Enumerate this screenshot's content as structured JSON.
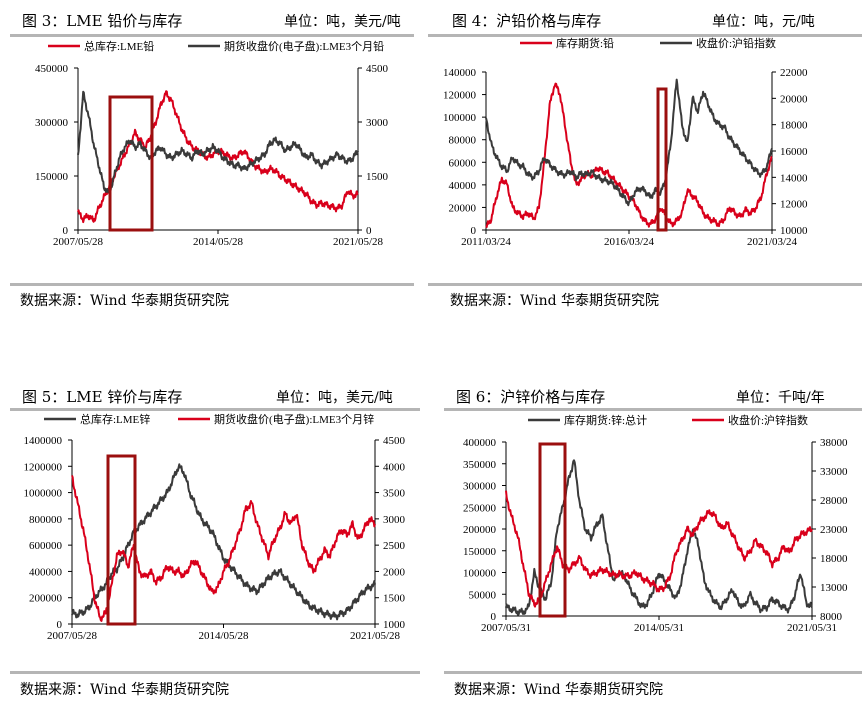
{
  "colors": {
    "red": "#d9001b",
    "dark": "#3a3a3a",
    "box": "#9b0f0f",
    "rule": "#b5b5b5"
  },
  "panels": [
    {
      "title": "图 3：LME 铅价与库存",
      "unit": "单位：吨，美元/吨",
      "source": "数据来源：Wind 华泰期货研究院",
      "chart_data": {
        "type": "line",
        "x_ticks": [
          "2007/05/28",
          "2014/05/28",
          "2021/05/28"
        ],
        "y_left": {
          "min": 0,
          "max": 450000,
          "ticks": [
            "0",
            "150000",
            "300000",
            "450000"
          ]
        },
        "y_right": {
          "min": 0,
          "max": 4500,
          "ticks": [
            "0",
            "1500",
            "3000",
            "4500"
          ]
        },
        "series": [
          {
            "name": "总库存:LME铅",
            "axis": "left",
            "color": "#d9001b",
            "values": [
              50000,
              30000,
              40000,
              25000,
              60000,
              90000,
              120000,
              150000,
              180000,
              210000,
              240000,
              270000,
              250000,
              230000,
              260000,
              300000,
              350000,
              380000,
              360000,
              320000,
              280000,
              250000,
              230000,
              220000,
              210000,
              200000,
              210000,
              220000,
              215000,
              205000,
              200000,
              210000,
              220000,
              200000,
              180000,
              170000,
              160000,
              170000,
              165000,
              150000,
              140000,
              130000,
              120000,
              110000,
              100000,
              80000,
              70000,
              75000,
              70000,
              65000,
              60000,
              70000,
              110000,
              95000,
              100000
            ]
          },
          {
            "name": "期货收盘价(电子盘):LME3个月铅",
            "axis": "right",
            "color": "#3a3a3a",
            "values": [
              2000,
              3800,
              3200,
              2400,
              1800,
              1200,
              1000,
              1500,
              2000,
              2300,
              2500,
              2300,
              2400,
              2200,
              2000,
              2200,
              2300,
              2100,
              2000,
              2100,
              2200,
              2100,
              2000,
              2200,
              2100,
              2200,
              2300,
              2200,
              2000,
              1900,
              1800,
              1800,
              1700,
              1800,
              1900,
              2000,
              2100,
              2400,
              2500,
              2400,
              2200,
              2300,
              2400,
              2200,
              2000,
              2100,
              1900,
              1800,
              1900,
              2000,
              2100,
              2000,
              1900,
              2000,
              2200
            ]
          }
        ]
      }
    },
    {
      "title": "图 4：沪铅价格与库存",
      "unit": "单位：吨，元/吨",
      "source": "数据来源：Wind 华泰期货研究院",
      "chart_data": {
        "type": "line",
        "x_ticks": [
          "2011/03/24",
          "2016/03/24",
          "2021/03/24"
        ],
        "y_left": {
          "min": 0,
          "max": 140000,
          "ticks": [
            "0",
            "20000",
            "40000",
            "60000",
            "80000",
            "100000",
            "120000",
            "140000"
          ]
        },
        "y_right": {
          "min": 10000,
          "max": 22000,
          "ticks": [
            "10000",
            "12000",
            "14000",
            "16000",
            "18000",
            "20000",
            "22000"
          ]
        },
        "series": [
          {
            "name": "库存期货:铅",
            "axis": "left",
            "color": "#d9001b",
            "values": [
              2000,
              10000,
              30000,
              45000,
              40000,
              20000,
              15000,
              12000,
              15000,
              10000,
              20000,
              60000,
              110000,
              130000,
              120000,
              90000,
              60000,
              40000,
              45000,
              50000,
              48000,
              55000,
              52000,
              50000,
              45000,
              40000,
              35000,
              30000,
              25000,
              15000,
              8000,
              5000,
              10000,
              20000,
              12000,
              5000,
              8000,
              15000,
              35000,
              30000,
              25000,
              15000,
              10000,
              8000,
              5000,
              10000,
              20000,
              15000,
              12000,
              18000,
              15000,
              20000,
              30000,
              50000,
              65000
            ]
          },
          {
            "name": "收盘价:沪铅指数",
            "axis": "right",
            "color": "#3a3a3a",
            "values": [
              18500,
              16500,
              15500,
              14800,
              14500,
              15500,
              15000,
              14800,
              14200,
              14000,
              14500,
              15500,
              15000,
              14600,
              14300,
              14200,
              14500,
              14000,
              14300,
              14200,
              14400,
              14000,
              13800,
              13700,
              13500,
              13000,
              12500,
              12000,
              12800,
              13200,
              13000,
              12500,
              13000,
              12800,
              14000,
              17000,
              21500,
              18000,
              16500,
              20000,
              19000,
              20500,
              19500,
              18500,
              18000,
              17800,
              17000,
              16500,
              16000,
              15500,
              15000,
              14500,
              14200,
              14800,
              16200
            ]
          }
        ]
      }
    },
    {
      "title": "图 5：LME 锌价与库存",
      "unit": "单位：吨，美元/吨",
      "source": "数据来源：Wind 华泰期货研究院",
      "chart_data": {
        "type": "line",
        "x_ticks": [
          "2007/05/28",
          "2014/05/28",
          "2021/05/28"
        ],
        "y_left": {
          "min": 0,
          "max": 1400000,
          "ticks": [
            "0",
            "200000",
            "400000",
            "600000",
            "800000",
            "1000000",
            "1200000",
            "1400000"
          ]
        },
        "y_right": {
          "min": 1000,
          "max": 4500,
          "ticks": [
            "1000",
            "1500",
            "2000",
            "2500",
            "3000",
            "3500",
            "4000",
            "4500"
          ]
        },
        "series": [
          {
            "name": "总库存:LME锌",
            "axis": "left",
            "color": "#3a3a3a",
            "values": [
              80000,
              70000,
              90000,
              120000,
              200000,
              250000,
              300000,
              380000,
              420000,
              500000,
              600000,
              700000,
              750000,
              800000,
              850000,
              900000,
              950000,
              1000000,
              1100000,
              1200000,
              1150000,
              1000000,
              900000,
              800000,
              750000,
              700000,
              600000,
              500000,
              450000,
              400000,
              350000,
              300000,
              270000,
              250000,
              300000,
              350000,
              380000,
              400000,
              350000,
              300000,
              250000,
              200000,
              150000,
              120000,
              100000,
              80000,
              70000,
              60000,
              80000,
              100000,
              150000,
              200000,
              250000,
              280000,
              300000
            ]
          },
          {
            "name": "期货收盘价(电子盘):LME3个月锌",
            "axis": "right",
            "color": "#d9001b",
            "values": [
              3800,
              3300,
              2800,
              2200,
              1500,
              1100,
              1200,
              1700,
              2300,
              2400,
              2100,
              2500,
              2000,
              1900,
              2000,
              1800,
              1900,
              2100,
              2000,
              2000,
              1900,
              2100,
              2200,
              2000,
              1800,
              1600,
              1700,
              2000,
              2200,
              2500,
              2800,
              3200,
              3300,
              2900,
              2600,
              2300,
              2600,
              2800,
              3100,
              2900,
              3100,
              2500,
              2200,
              2000,
              2200,
              2400,
              2300,
              2600,
              2800,
              2700,
              2900,
              2600,
              2800,
              3000,
              2900
            ]
          }
        ]
      }
    },
    {
      "title": "图 6：沪锌价格与库存",
      "unit": "单位：千吨/年",
      "source": "数据来源：Wind 华泰期货研究院",
      "chart_data": {
        "type": "line",
        "x_ticks": [
          "2007/05/31",
          "2014/05/31",
          "2021/05/31"
        ],
        "y_left": {
          "min": 0,
          "max": 400000,
          "ticks": [
            "0",
            "50000",
            "100000",
            "150000",
            "200000",
            "250000",
            "300000",
            "350000",
            "400000"
          ]
        },
        "y_right": {
          "min": 8000,
          "max": 38000,
          "ticks": [
            "8000",
            "13000",
            "18000",
            "23000",
            "28000",
            "33000",
            "38000"
          ]
        },
        "series": [
          {
            "name": "库存期货:锌:总计",
            "axis": "left",
            "color": "#3a3a3a",
            "values": [
              20000,
              15000,
              10000,
              8000,
              20000,
              100000,
              60000,
              40000,
              80000,
              200000,
              250000,
              310000,
              360000,
              260000,
              200000,
              180000,
              210000,
              230000,
              150000,
              80000,
              100000,
              90000,
              60000,
              40000,
              20000,
              30000,
              60000,
              100000,
              80000,
              60000,
              40000,
              80000,
              150000,
              200000,
              160000,
              80000,
              50000,
              30000,
              20000,
              40000,
              60000,
              30000,
              20000,
              50000,
              30000,
              15000,
              20000,
              40000,
              30000,
              20000,
              15000,
              50000,
              100000,
              30000,
              20000
            ]
          },
          {
            "name": "收盘价:沪锌指数",
            "axis": "right",
            "color": "#d9001b",
            "values": [
              29000,
              25000,
              22000,
              17000,
              12000,
              10000,
              11000,
              14000,
              17000,
              20000,
              17000,
              16000,
              17000,
              18000,
              16000,
              15000,
              15500,
              16000,
              15500,
              15000,
              15200,
              14800,
              15000,
              15500,
              14500,
              14000,
              13500,
              12500,
              13000,
              15000,
              19000,
              21000,
              23000,
              22000,
              24000,
              25000,
              26000,
              25000,
              23000,
              24000,
              22000,
              20000,
              18000,
              19000,
              21000,
              20000,
              19000,
              17000,
              18000,
              20000,
              19000,
              21000,
              22000,
              22500,
              23000
            ]
          }
        ]
      }
    }
  ]
}
